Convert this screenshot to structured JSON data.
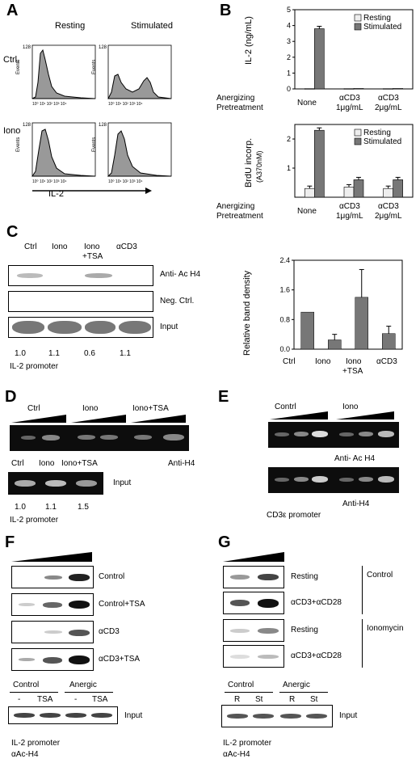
{
  "panels": {
    "A": "A",
    "B": "B",
    "C": "C",
    "D": "D",
    "E": "E",
    "F": "F",
    "G": "G"
  },
  "panelA": {
    "col_resting": "Resting",
    "col_stimulated": "Stimulated",
    "row_ctrl": "Ctrl.",
    "row_iono": "Iono",
    "y_max": "128",
    "y_label": "Events",
    "x_ticks": [
      "10⁰",
      "10¹",
      "10²",
      "10³",
      "10⁴"
    ],
    "x_label": "IL-2"
  },
  "panelB": {
    "top": {
      "ylabel": "IL-2 (ng/mL)",
      "yticks": [
        "0",
        "1",
        "2",
        "3",
        "4",
        "5"
      ],
      "legend": [
        "Resting",
        "Stimulated"
      ],
      "categories": [
        "None",
        "αCD3\n1μg/mL",
        "αCD3\n2μg/mL"
      ]
    },
    "bottom": {
      "ylabel": "BrdU incorp.",
      "ylabel2": "(A370nM)",
      "yticks": [
        "1",
        "2"
      ],
      "legend": [
        "Resting",
        "Stimulated"
      ]
    },
    "pretreat_1": "Anergizing",
    "pretreat_2": "Pretreatment",
    "cat_none": "None",
    "cat_a1": "αCD3",
    "cat_a1b": "1μg/mL",
    "cat_a2": "αCD3",
    "cat_a2b": "2μg/mL"
  },
  "panelC": {
    "lanes": [
      "Ctrl",
      "Iono",
      "Iono\n+TSA",
      "αCD3"
    ],
    "lane_ctrl": "Ctrl",
    "lane_iono": "Iono",
    "lane_ionotsa1": "Iono",
    "lane_ionotsa2": "+TSA",
    "lane_acd3": "αCD3",
    "gel_labels": [
      "Anti- Ac H4",
      "Neg. Ctrl.",
      "Input"
    ],
    "ratios": [
      "1.0",
      "1.1",
      "0.6",
      "1.1"
    ],
    "promoter": "IL-2 promoter",
    "chart_ylabel": "Relative band density",
    "chart_yticks": [
      "0.0",
      "0.8",
      "1.6",
      "2.4"
    ]
  },
  "panelD": {
    "groups": [
      "Ctrl",
      "Iono",
      "Iono+TSA"
    ],
    "gel_label": "Anti-H4",
    "input_lanes": [
      "Ctrl",
      "Iono",
      "Iono+TSA"
    ],
    "input_label": "Input",
    "ratios": [
      "1.0",
      "1.1",
      "1.5"
    ],
    "promoter": "IL-2 promoter"
  },
  "panelE": {
    "groups": [
      "Contrl",
      "Iono"
    ],
    "gel_labels": [
      "Anti- Ac H4",
      "Anti-H4"
    ],
    "promoter": "CD3ε promoter"
  },
  "panelF": {
    "gel_labels": [
      "Control",
      "Control+TSA",
      "αCD3",
      "αCD3+TSA"
    ],
    "group_control": "Control",
    "group_anergic": "Anergic",
    "lanes": [
      "-",
      "TSA",
      "-",
      "TSA"
    ],
    "input_label": "Input",
    "promoter": "IL-2 promoter",
    "antibody": "αAc-H4"
  },
  "panelG": {
    "gel_labels": [
      "Resting",
      "αCD3+αCD28",
      "Resting",
      "αCD3+αCD28"
    ],
    "bracket_control": "Control",
    "bracket_iono": "Ionomycin",
    "group_control": "Control",
    "group_anergic": "Anergic",
    "lanes": [
      "R",
      "St",
      "R",
      "St"
    ],
    "input_label": "Input",
    "promoter": "IL-2 promoter",
    "antibody": "αAc-H4"
  },
  "chart_data": [
    {
      "type": "bar",
      "title": "",
      "categories": [
        "None",
        "αCD3 1μg/mL",
        "αCD3 2μg/mL"
      ],
      "series": [
        {
          "name": "Resting",
          "values": [
            0.02,
            0.02,
            0.02
          ]
        },
        {
          "name": "Stimulated",
          "values": [
            3.8,
            0.03,
            0.03
          ]
        }
      ],
      "ylabel": "IL-2 (ng/mL)",
      "ylim": [
        0,
        5
      ],
      "legend": "top-right"
    },
    {
      "type": "bar",
      "title": "",
      "categories": [
        "None",
        "αCD3 1μg/mL",
        "αCD3 2μg/mL"
      ],
      "series": [
        {
          "name": "Resting",
          "values": [
            0.3,
            0.35,
            0.3
          ]
        },
        {
          "name": "Stimulated",
          "values": [
            2.3,
            0.6,
            0.6
          ]
        }
      ],
      "ylabel": "BrdU incorp. (A370nM)",
      "ylim": [
        0,
        2.5
      ],
      "legend": "top-right"
    },
    {
      "type": "bar",
      "title": "",
      "categories": [
        "Ctrl",
        "Iono",
        "Iono +TSA",
        "αCD3"
      ],
      "values": [
        1.0,
        0.25,
        1.4,
        0.42
      ],
      "errors": [
        0,
        0.15,
        0.75,
        0.2
      ],
      "ylabel": "Relative band density",
      "ylim": [
        0,
        2.4
      ]
    }
  ]
}
